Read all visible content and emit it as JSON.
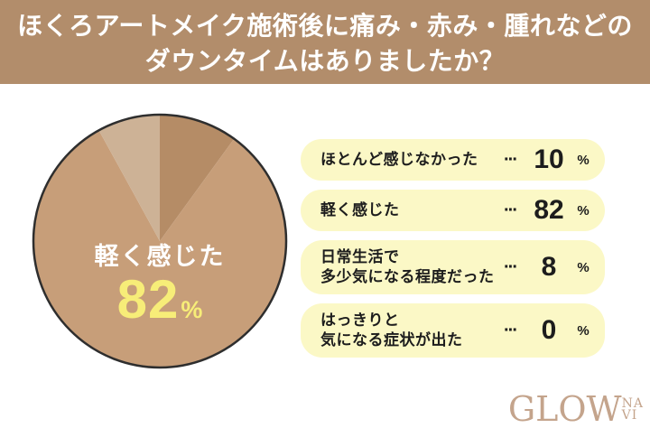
{
  "header": {
    "title_line1": "ほくろアートメイク施術後に痛み・赤み・腫れなどの",
    "title_line2": "ダウンタイムはありましたか？",
    "bg_color": "#b28d6b",
    "text_color": "#ffffff"
  },
  "chart_data": {
    "type": "pie",
    "title": "ほくろアートメイク施術後に痛み・赤み・腫れなどのダウンタイムはありましたか？",
    "categories": [
      "ほとんど感じなかった",
      "軽く感じた",
      "日常生活で多少気になる程度だった",
      "はっきりと気になる症状が出た"
    ],
    "values": [
      10,
      82,
      8,
      0
    ],
    "slice_colors": [
      "#b58c66",
      "#c79e79",
      "#cdb296",
      "#cdb296"
    ],
    "outline_color": "#2e2e2e",
    "start_angle": "12-oclock",
    "direction": "clockwise",
    "legend_position": "right"
  },
  "pie_center": {
    "label": "軽く感じた",
    "value": "82",
    "unit": "%",
    "label_color": "#ffffff",
    "value_color": "#f7ed78"
  },
  "legend": {
    "bg_color": "#fbf8c6",
    "separator": "···",
    "unit": "%",
    "items": [
      {
        "label_lines": [
          "ほとんど感じなかった"
        ],
        "value": "10"
      },
      {
        "label_lines": [
          "軽く感じた"
        ],
        "value": "82"
      },
      {
        "label_lines": [
          "日常生活で",
          "多少気になる程度だった"
        ],
        "value": "8"
      },
      {
        "label_lines": [
          "はっきりと",
          "気になる症状が出た"
        ],
        "value": "0"
      }
    ]
  },
  "footer": {
    "logo_main": "GLOW",
    "logo_sub_top": "NA",
    "logo_sub_bottom": "VI",
    "logo_color": "#c4a48c"
  }
}
